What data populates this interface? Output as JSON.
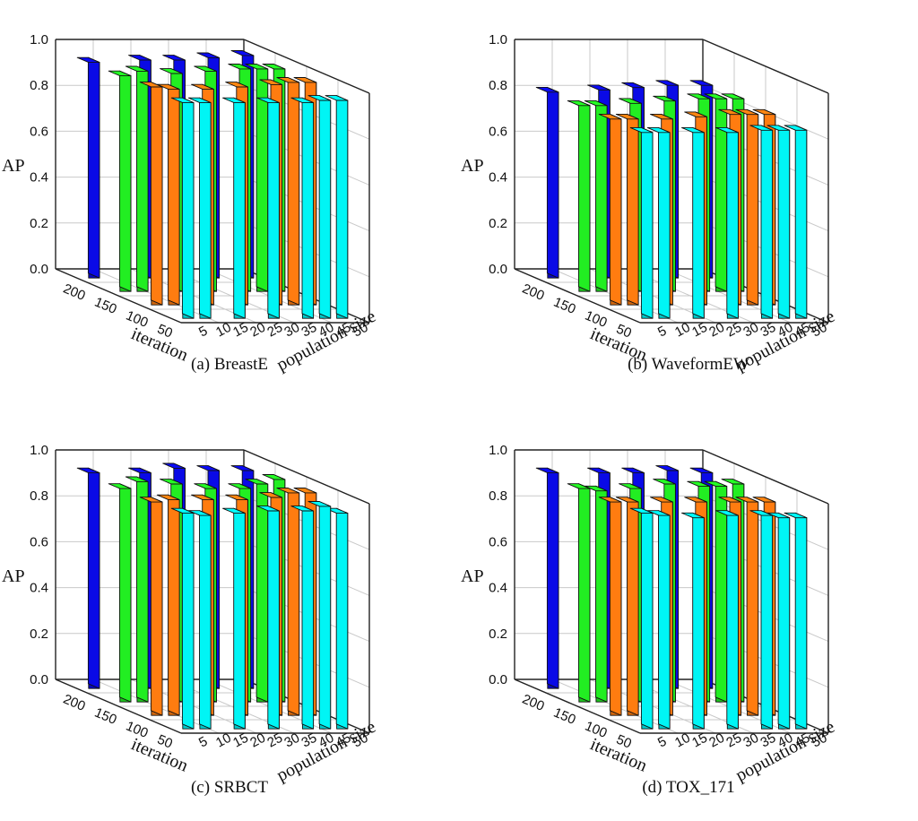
{
  "chart_data": [
    {
      "type": "bar3d",
      "caption": "(a) BreastE",
      "ylabel": "AP",
      "xlabel": "iteration",
      "zlabel": "population size",
      "ylim": [
        0,
        1
      ],
      "y_ticks": [
        "0.0",
        "0.2",
        "0.4",
        "0.6",
        "0.8",
        "1.0"
      ],
      "iteration_ticks": [
        "50",
        "100",
        "150",
        "200"
      ],
      "population_ticks": [
        "5",
        "10",
        "15",
        "20",
        "25",
        "30",
        "35",
        "40",
        "45",
        "50"
      ],
      "bars": [
        {
          "iteration": 200,
          "population": 50,
          "value": 0.97
        },
        {
          "iteration": 150,
          "population": 50,
          "value": 0.97
        },
        {
          "iteration": 150,
          "population": 45,
          "value": 0.97
        },
        {
          "iteration": 150,
          "population": 40,
          "value": 0.97
        },
        {
          "iteration": 200,
          "population": 40,
          "value": 0.96
        },
        {
          "iteration": 100,
          "population": 50,
          "value": 0.97
        },
        {
          "iteration": 100,
          "population": 45,
          "value": 0.97
        },
        {
          "iteration": 100,
          "population": 40,
          "value": 0.96
        },
        {
          "iteration": 150,
          "population": 30,
          "value": 0.96
        },
        {
          "iteration": 200,
          "population": 30,
          "value": 0.95
        },
        {
          "iteration": 50,
          "population": 50,
          "value": 0.95
        },
        {
          "iteration": 50,
          "population": 45,
          "value": 0.95
        },
        {
          "iteration": 50,
          "population": 40,
          "value": 0.94
        },
        {
          "iteration": 100,
          "population": 30,
          "value": 0.95
        },
        {
          "iteration": 150,
          "population": 20,
          "value": 0.95
        },
        {
          "iteration": 200,
          "population": 20,
          "value": 0.95
        },
        {
          "iteration": 50,
          "population": 30,
          "value": 0.94
        },
        {
          "iteration": 100,
          "population": 20,
          "value": 0.94
        },
        {
          "iteration": 150,
          "population": 10,
          "value": 0.96
        },
        {
          "iteration": 50,
          "population": 20,
          "value": 0.94
        },
        {
          "iteration": 100,
          "population": 10,
          "value": 0.94
        },
        {
          "iteration": 50,
          "population": 10,
          "value": 0.94
        },
        {
          "iteration": 50,
          "population": 5,
          "value": 0.94
        },
        {
          "iteration": 100,
          "population": 5,
          "value": 0.95
        },
        {
          "iteration": 150,
          "population": 5,
          "value": 0.94
        },
        {
          "iteration": 200,
          "population": 5,
          "value": 0.94
        }
      ]
    },
    {
      "type": "bar3d",
      "caption": "(b) WaveformEW",
      "ylabel": "AP",
      "xlabel": "iteration",
      "zlabel": "population size",
      "ylim": [
        0,
        1
      ],
      "y_ticks": [
        "0.0",
        "0.2",
        "0.4",
        "0.6",
        "0.8",
        "1.0"
      ],
      "iteration_ticks": [
        "50",
        "100",
        "150",
        "200"
      ],
      "population_ticks": [
        "5",
        "10",
        "15",
        "20",
        "25",
        "30",
        "35",
        "40",
        "45",
        "50"
      ],
      "bars": [
        {
          "iteration": 200,
          "population": 50,
          "value": 0.84
        },
        {
          "iteration": 150,
          "population": 50,
          "value": 0.84
        },
        {
          "iteration": 150,
          "population": 45,
          "value": 0.84
        },
        {
          "iteration": 150,
          "population": 40,
          "value": 0.84
        },
        {
          "iteration": 200,
          "population": 40,
          "value": 0.84
        },
        {
          "iteration": 100,
          "population": 50,
          "value": 0.83
        },
        {
          "iteration": 100,
          "population": 45,
          "value": 0.83
        },
        {
          "iteration": 100,
          "population": 40,
          "value": 0.83
        },
        {
          "iteration": 150,
          "population": 30,
          "value": 0.83
        },
        {
          "iteration": 200,
          "population": 30,
          "value": 0.83
        },
        {
          "iteration": 50,
          "population": 50,
          "value": 0.82
        },
        {
          "iteration": 50,
          "population": 45,
          "value": 0.82
        },
        {
          "iteration": 50,
          "population": 40,
          "value": 0.82
        },
        {
          "iteration": 100,
          "population": 30,
          "value": 0.82
        },
        {
          "iteration": 150,
          "population": 20,
          "value": 0.82
        },
        {
          "iteration": 200,
          "population": 20,
          "value": 0.82
        },
        {
          "iteration": 50,
          "population": 30,
          "value": 0.81
        },
        {
          "iteration": 100,
          "population": 20,
          "value": 0.81
        },
        {
          "iteration": 150,
          "population": 10,
          "value": 0.81
        },
        {
          "iteration": 50,
          "population": 20,
          "value": 0.81
        },
        {
          "iteration": 100,
          "population": 10,
          "value": 0.81
        },
        {
          "iteration": 50,
          "population": 10,
          "value": 0.81
        },
        {
          "iteration": 50,
          "population": 5,
          "value": 0.81
        },
        {
          "iteration": 100,
          "population": 5,
          "value": 0.81
        },
        {
          "iteration": 150,
          "population": 5,
          "value": 0.81
        },
        {
          "iteration": 200,
          "population": 5,
          "value": 0.81
        }
      ]
    },
    {
      "type": "bar3d",
      "caption": "(c) SRBCT",
      "ylabel": "AP",
      "xlabel": "iteration",
      "zlabel": "population size",
      "ylim": [
        0,
        1
      ],
      "y_ticks": [
        "0.0",
        "0.2",
        "0.4",
        "0.6",
        "0.8",
        "1.0"
      ],
      "iteration_ticks": [
        "50",
        "100",
        "150",
        "200"
      ],
      "population_ticks": [
        "5",
        "10",
        "15",
        "20",
        "25",
        "30",
        "35",
        "40",
        "45",
        "50"
      ],
      "bars": [
        {
          "iteration": 200,
          "population": 50,
          "value": 0.95
        },
        {
          "iteration": 150,
          "population": 50,
          "value": 0.97
        },
        {
          "iteration": 150,
          "population": 45,
          "value": 0.95
        },
        {
          "iteration": 150,
          "population": 40,
          "value": 0.93
        },
        {
          "iteration": 200,
          "population": 40,
          "value": 0.95
        },
        {
          "iteration": 100,
          "population": 50,
          "value": 0.97
        },
        {
          "iteration": 100,
          "population": 45,
          "value": 0.97
        },
        {
          "iteration": 100,
          "population": 40,
          "value": 0.95
        },
        {
          "iteration": 150,
          "population": 30,
          "value": 0.93
        },
        {
          "iteration": 200,
          "population": 30,
          "value": 0.96
        },
        {
          "iteration": 50,
          "population": 50,
          "value": 0.94
        },
        {
          "iteration": 50,
          "population": 45,
          "value": 0.97
        },
        {
          "iteration": 50,
          "population": 40,
          "value": 0.95
        },
        {
          "iteration": 100,
          "population": 30,
          "value": 0.94
        },
        {
          "iteration": 150,
          "population": 20,
          "value": 0.95
        },
        {
          "iteration": 200,
          "population": 20,
          "value": 0.94
        },
        {
          "iteration": 50,
          "population": 30,
          "value": 0.95
        },
        {
          "iteration": 100,
          "population": 20,
          "value": 0.94
        },
        {
          "iteration": 150,
          "population": 10,
          "value": 0.96
        },
        {
          "iteration": 50,
          "population": 20,
          "value": 0.94
        },
        {
          "iteration": 100,
          "population": 10,
          "value": 0.94
        },
        {
          "iteration": 50,
          "population": 10,
          "value": 0.93
        },
        {
          "iteration": 50,
          "population": 5,
          "value": 0.94
        },
        {
          "iteration": 100,
          "population": 5,
          "value": 0.93
        },
        {
          "iteration": 150,
          "population": 5,
          "value": 0.93
        },
        {
          "iteration": 200,
          "population": 5,
          "value": 0.94
        }
      ]
    },
    {
      "type": "bar3d",
      "caption": "(d) TOX_171",
      "ylabel": "AP",
      "xlabel": "iteration",
      "zlabel": "population size",
      "ylim": [
        0,
        1
      ],
      "y_ticks": [
        "0.0",
        "0.2",
        "0.4",
        "0.6",
        "0.8",
        "1.0"
      ],
      "iteration_ticks": [
        "50",
        "100",
        "150",
        "200"
      ],
      "population_ticks": [
        "5",
        "10",
        "15",
        "20",
        "25",
        "30",
        "35",
        "40",
        "45",
        "50"
      ],
      "bars": [
        {
          "iteration": 200,
          "population": 50,
          "value": 0.94
        },
        {
          "iteration": 150,
          "population": 50,
          "value": 0.95
        },
        {
          "iteration": 150,
          "population": 45,
          "value": 0.94
        },
        {
          "iteration": 150,
          "population": 40,
          "value": 0.94
        },
        {
          "iteration": 200,
          "population": 40,
          "value": 0.95
        },
        {
          "iteration": 100,
          "population": 50,
          "value": 0.93
        },
        {
          "iteration": 100,
          "population": 45,
          "value": 0.93
        },
        {
          "iteration": 100,
          "population": 40,
          "value": 0.93
        },
        {
          "iteration": 150,
          "population": 30,
          "value": 0.95
        },
        {
          "iteration": 200,
          "population": 30,
          "value": 0.94
        },
        {
          "iteration": 50,
          "population": 50,
          "value": 0.92
        },
        {
          "iteration": 50,
          "population": 45,
          "value": 0.92
        },
        {
          "iteration": 50,
          "population": 40,
          "value": 0.93
        },
        {
          "iteration": 100,
          "population": 30,
          "value": 0.93
        },
        {
          "iteration": 150,
          "population": 20,
          "value": 0.93
        },
        {
          "iteration": 200,
          "population": 20,
          "value": 0.94
        },
        {
          "iteration": 50,
          "population": 30,
          "value": 0.93
        },
        {
          "iteration": 100,
          "population": 20,
          "value": 0.93
        },
        {
          "iteration": 150,
          "population": 10,
          "value": 0.92
        },
        {
          "iteration": 50,
          "population": 20,
          "value": 0.92
        },
        {
          "iteration": 100,
          "population": 10,
          "value": 0.93
        },
        {
          "iteration": 50,
          "population": 10,
          "value": 0.93
        },
        {
          "iteration": 50,
          "population": 5,
          "value": 0.94
        },
        {
          "iteration": 100,
          "population": 5,
          "value": 0.93
        },
        {
          "iteration": 150,
          "population": 5,
          "value": 0.93
        },
        {
          "iteration": 200,
          "population": 5,
          "value": 0.94
        }
      ]
    }
  ],
  "bar_colors": {
    "50": "#00f5f5",
    "100": "#ff7c10",
    "150": "#22ee22",
    "200": "#0a0ae6"
  }
}
